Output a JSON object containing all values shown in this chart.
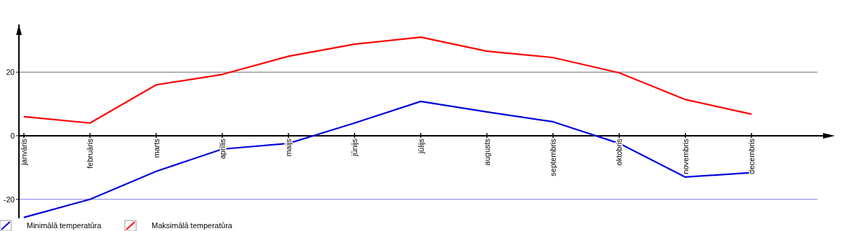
{
  "chart_data": {
    "type": "line",
    "categories": [
      "janvāris",
      "februāris",
      "marts",
      "aprīlis",
      "maijs",
      "jūnijs",
      "jūlijs",
      "augusts",
      "septembris",
      "oktobris",
      "novembris",
      "decembris"
    ],
    "series": [
      {
        "name": "Minimālā temperatūra",
        "color": "#0000dd",
        "values": [
          -25.7,
          -20,
          -11.2,
          -4.2,
          -2.4,
          4,
          10.8,
          7.5,
          4.4,
          -2.4,
          -13,
          -11.6
        ]
      },
      {
        "name": "Maksimālā temperatūra",
        "color": "#ff0000",
        "values": [
          6,
          4,
          16,
          19.3,
          25,
          28.8,
          31,
          26.6,
          24.6,
          19.8,
          11.4,
          6.8
        ]
      }
    ],
    "ylim": [
      -26,
      35
    ],
    "yticks": [
      -20,
      0,
      20
    ],
    "ref_lines": [
      {
        "axis": "y",
        "value": 20,
        "color": "#666666"
      },
      {
        "axis": "y",
        "value": -20,
        "color": "#7777ee"
      }
    ],
    "legend": "bottom left",
    "line_style": "solid",
    "marker": "none"
  }
}
